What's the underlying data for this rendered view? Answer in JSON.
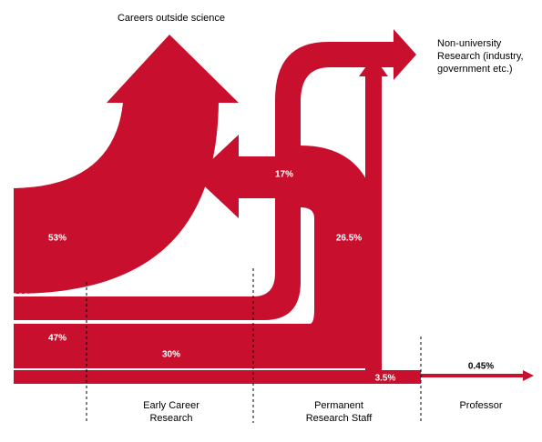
{
  "destinations": {
    "outside": "Careers outside science",
    "nonuni": [
      "Non-university",
      "Research (industry,",
      "government etc.)"
    ]
  },
  "flows": {
    "outside_early": "53%",
    "stay_early": "47%",
    "early_to_staff": "30%",
    "early_to_nonuni": "17%",
    "staff_out": "26.5%",
    "staff_to_prof": "3.5%",
    "professor": "0.45%"
  },
  "stages": {
    "early": [
      "Early Career",
      "Research"
    ],
    "staff": [
      "Permanent",
      "Research Staff"
    ],
    "professor": "Professor"
  }
}
